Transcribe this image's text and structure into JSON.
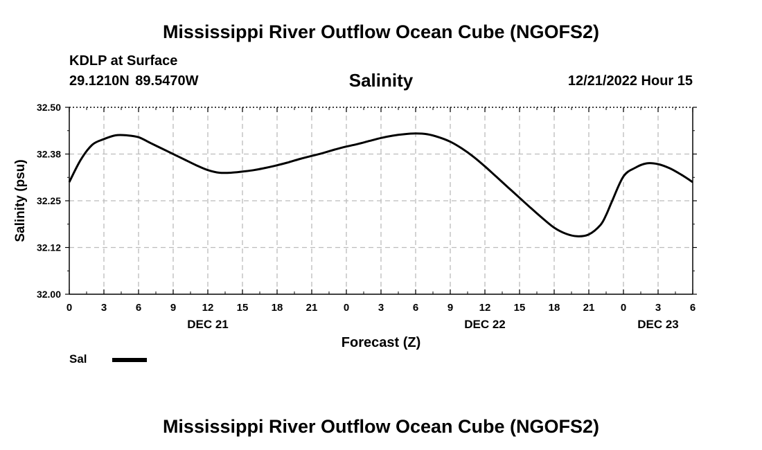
{
  "header": {
    "title": "Mississippi River Outflow Ocean Cube (NGOFS2)",
    "station": "KDLP at Surface",
    "coords": "29.1210N  89.5470W",
    "datetime": "12/21/2022 Hour 15"
  },
  "footer": {
    "title": "Mississippi River Outflow Ocean Cube (NGOFS2)"
  },
  "legend": {
    "label": "Sal"
  },
  "colors": {
    "line": "#000000",
    "grid": "#bbbbbb"
  },
  "chart_data": {
    "type": "line",
    "title": "Salinity",
    "xlabel": "Forecast (Z)",
    "ylabel": "Salinity (psu)",
    "ylim": [
      32.0,
      32.5
    ],
    "xlim": [
      0,
      54
    ],
    "yticks": [
      32.0,
      32.125,
      32.25,
      32.375,
      32.5
    ],
    "ytick_labels": [
      "32.00",
      "32.12",
      "32.25",
      "32.38",
      "32.50"
    ],
    "xticks": [
      0,
      3,
      6,
      9,
      12,
      15,
      18,
      21,
      24,
      27,
      30,
      33,
      36,
      39,
      42,
      45,
      48,
      51,
      54
    ],
    "xtick_labels": [
      "0",
      "3",
      "6",
      "9",
      "12",
      "15",
      "18",
      "21",
      "0",
      "3",
      "6",
      "9",
      "12",
      "15",
      "18",
      "21",
      "0",
      "3",
      "6"
    ],
    "day_labels": [
      {
        "x": 12,
        "label": "DEC 21"
      },
      {
        "x": 36,
        "label": "DEC 22"
      },
      {
        "x": 51,
        "label": "DEC 23"
      }
    ],
    "grid": true,
    "series": [
      {
        "name": "Sal",
        "x": [
          0,
          1,
          2,
          3,
          4,
          5,
          6,
          7,
          8,
          9,
          10,
          11,
          12,
          13,
          14,
          15,
          16,
          17,
          18,
          19,
          20,
          21,
          22,
          23,
          24,
          25,
          26,
          27,
          28,
          29,
          30,
          31,
          32,
          33,
          34,
          35,
          36,
          37,
          38,
          39,
          40,
          41,
          42,
          43,
          44,
          45,
          46,
          46.5,
          47,
          48,
          49,
          50,
          51,
          52,
          53,
          54
        ],
        "y": [
          32.3,
          32.36,
          32.4,
          32.415,
          32.425,
          32.425,
          32.42,
          32.405,
          32.39,
          32.375,
          32.36,
          32.345,
          32.332,
          32.325,
          32.325,
          32.328,
          32.332,
          32.338,
          32.345,
          32.353,
          32.362,
          32.37,
          32.378,
          32.387,
          32.395,
          32.402,
          32.41,
          32.418,
          32.424,
          32.428,
          32.43,
          32.428,
          32.42,
          32.408,
          32.39,
          32.368,
          32.342,
          32.314,
          32.286,
          32.258,
          32.23,
          32.203,
          32.178,
          32.162,
          32.155,
          32.16,
          32.185,
          32.212,
          32.248,
          32.315,
          32.338,
          32.35,
          32.348,
          32.337,
          32.32,
          32.3
        ]
      }
    ]
  }
}
